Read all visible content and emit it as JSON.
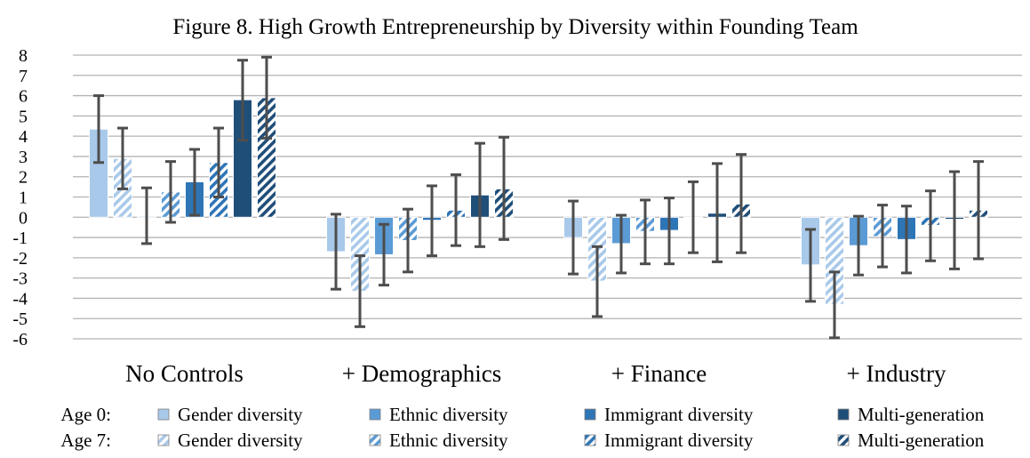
{
  "chart_data": {
    "type": "bar",
    "title": "Figure 8. High Growth Entrepreneurship by Diversity within Founding Team",
    "xlabel": "",
    "ylabel": "",
    "ylim": [
      -6,
      8
    ],
    "yticks": [
      "8",
      "7",
      "6",
      "5",
      "4",
      "3",
      "2",
      "1",
      "0",
      "-1",
      "-2",
      "-3",
      "-4",
      "-5",
      "-6"
    ],
    "grid": true,
    "legend_position": "bottom",
    "categories": [
      "No Controls",
      "+ Demographics",
      "+ Finance",
      "+ Industry"
    ],
    "legend": {
      "rows": [
        {
          "label": "Age 0:",
          "items": [
            "Gender diversity",
            "Ethnic diversity",
            "Immigrant diversity",
            "Multi-generation"
          ]
        },
        {
          "label": "Age 7:",
          "items": [
            "Gender diversity",
            "Ethnic diversity",
            "Immigrant diversity",
            "Multi-generation"
          ]
        }
      ]
    },
    "series": [
      {
        "age": "Age 0",
        "group": "Gender diversity",
        "color": "#a9c9ea",
        "hatched": false,
        "values": [
          4.35,
          -1.7,
          -1.0,
          -2.35
        ],
        "err_low": [
          2.7,
          -3.55,
          -2.8,
          -4.15
        ],
        "err_high": [
          6.0,
          0.15,
          0.8,
          -0.6
        ]
      },
      {
        "age": "Age 7",
        "group": "Gender diversity",
        "color": "#a9c9ea",
        "hatched": true,
        "values": [
          2.9,
          -3.65,
          -3.15,
          -4.3
        ],
        "err_low": [
          1.4,
          -5.4,
          -4.9,
          -5.95
        ],
        "err_high": [
          4.4,
          -1.9,
          -1.45,
          -2.7
        ]
      },
      {
        "age": "Age 0",
        "group": "Ethnic diversity",
        "color": "#5b9bd5",
        "hatched": false,
        "values": [
          0.05,
          -1.85,
          -1.3,
          -1.4
        ],
        "err_low": [
          -1.3,
          -3.35,
          -2.75,
          -2.85
        ],
        "err_high": [
          1.45,
          -0.35,
          0.1,
          0.05
        ]
      },
      {
        "age": "Age 7",
        "group": "Ethnic diversity",
        "color": "#5b9bd5",
        "hatched": true,
        "values": [
          1.25,
          -1.15,
          -0.7,
          -0.95
        ],
        "err_low": [
          -0.25,
          -2.7,
          -2.3,
          -2.45
        ],
        "err_high": [
          2.75,
          0.4,
          0.85,
          0.6
        ]
      },
      {
        "age": "Age 0",
        "group": "Immigrant diversity",
        "color": "#2e75b6",
        "hatched": false,
        "values": [
          1.75,
          -0.15,
          -0.65,
          -1.1
        ],
        "err_low": [
          0.1,
          -1.9,
          -2.3,
          -2.75
        ],
        "err_high": [
          3.35,
          1.55,
          0.95,
          0.55
        ]
      },
      {
        "age": "Age 7",
        "group": "Immigrant diversity",
        "color": "#2e75b6",
        "hatched": true,
        "values": [
          2.7,
          0.35,
          0.0,
          -0.4
        ],
        "err_low": [
          1.0,
          -1.4,
          -1.75,
          -2.15
        ],
        "err_high": [
          4.4,
          2.1,
          1.75,
          1.3
        ]
      },
      {
        "age": "Age 0",
        "group": "Multi-generation",
        "color": "#1f4e79",
        "hatched": false,
        "values": [
          5.8,
          1.1,
          0.2,
          -0.1
        ],
        "err_low": [
          3.8,
          -1.45,
          -2.2,
          -2.55
        ],
        "err_high": [
          7.75,
          3.65,
          2.65,
          2.25
        ]
      },
      {
        "age": "Age 7",
        "group": "Multi-generation",
        "color": "#1f4e79",
        "hatched": true,
        "values": [
          5.9,
          1.4,
          0.65,
          0.35
        ],
        "err_low": [
          3.9,
          -1.1,
          -1.75,
          -2.05
        ],
        "err_high": [
          7.9,
          3.95,
          3.1,
          2.75
        ]
      }
    ]
  }
}
